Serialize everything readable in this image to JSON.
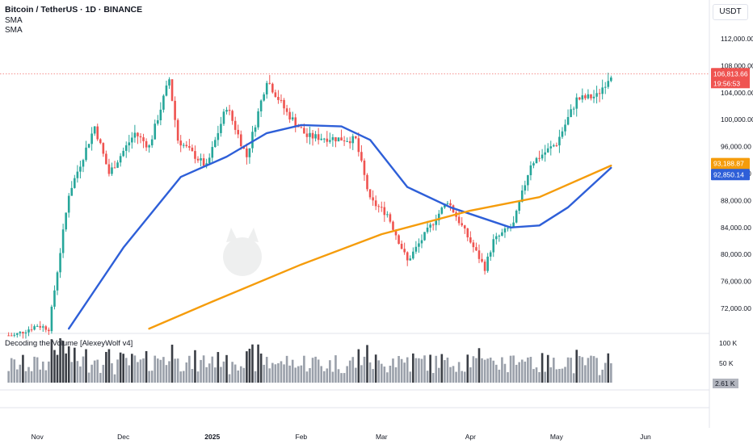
{
  "header": {
    "title": "Bitcoin / TetherUS · 1D · BINANCE",
    "indicators": [
      "SMA",
      "SMA"
    ],
    "currency": "USDT"
  },
  "colors": {
    "up": "#26a69a",
    "down": "#ef5350",
    "sma_short": "#2e5fd8",
    "sma_long": "#f59c0b",
    "price_line": "#ef5350",
    "volume": "#9aa0aa",
    "volume_dark": "#3a3e45"
  },
  "price_labels": {
    "last_price": "106,813.66",
    "countdown": "19:56:53",
    "sma_long_value": "93,188.87",
    "sma_short_value": "92,850.14"
  },
  "volume_pane": {
    "title": "Decoding the Volume [AlexeyWolf v4]",
    "ticks": [
      "100 K",
      "50 K"
    ],
    "current": "2.61 K"
  },
  "chart_data": {
    "type": "candlestick",
    "y_ticks": [
      "112,000.00",
      "108,000.00",
      "104,000.00",
      "100,000.00",
      "96,000.00",
      "92,000.00",
      "88,000.00",
      "84,000.00",
      "80,000.00",
      "76,000.00",
      "72,000.00"
    ],
    "ylim": [
      69000,
      113500
    ],
    "x_ticks": [
      "Nov",
      "Dec",
      "2025",
      "Feb",
      "Mar",
      "Apr",
      "May",
      "Jun"
    ],
    "candle_close_anchors": [
      [
        "2024-10-24",
        68000
      ],
      [
        "2024-11-01",
        69500
      ],
      [
        "2024-11-05",
        69000
      ],
      [
        "2024-11-12",
        89000
      ],
      [
        "2024-11-21",
        99000
      ],
      [
        "2024-11-26",
        92000
      ],
      [
        "2024-12-05",
        98000
      ],
      [
        "2024-12-10",
        96000
      ],
      [
        "2024-12-17",
        106000
      ],
      [
        "2024-12-20",
        97000
      ],
      [
        "2024-12-30",
        93000
      ],
      [
        "2025-01-06",
        102000
      ],
      [
        "2025-01-13",
        94500
      ],
      [
        "2025-01-20",
        106000
      ],
      [
        "2025-01-27",
        101000
      ],
      [
        "2025-02-03",
        97500
      ],
      [
        "2025-02-20",
        97000
      ],
      [
        "2025-02-25",
        88000
      ],
      [
        "2025-03-03",
        86000
      ],
      [
        "2025-03-10",
        79000
      ],
      [
        "2025-03-24",
        88000
      ],
      [
        "2025-04-06",
        78000
      ],
      [
        "2025-04-09",
        82000
      ],
      [
        "2025-04-16",
        84500
      ],
      [
        "2025-04-22",
        93500
      ],
      [
        "2025-05-01",
        96500
      ],
      [
        "2025-05-08",
        103000
      ],
      [
        "2025-05-15",
        103500
      ],
      [
        "2025-05-20",
        106800
      ]
    ],
    "series": [
      {
        "name": "SMA",
        "points": [
          [
            "2024-11-12",
            69000
          ],
          [
            "2024-12-01",
            81000
          ],
          [
            "2024-12-21",
            91500
          ],
          [
            "2025-01-06",
            94500
          ],
          [
            "2025-01-20",
            98000
          ],
          [
            "2025-02-01",
            99200
          ],
          [
            "2025-02-15",
            99000
          ],
          [
            "2025-02-25",
            97000
          ],
          [
            "2025-03-10",
            90000
          ],
          [
            "2025-03-25",
            87000
          ],
          [
            "2025-04-15",
            84000
          ],
          [
            "2025-04-25",
            84300
          ],
          [
            "2025-05-05",
            87000
          ],
          [
            "2025-05-20",
            92850
          ]
        ]
      },
      {
        "name": "SMA",
        "points": [
          [
            "2024-12-10",
            69000
          ],
          [
            "2025-01-01",
            73000
          ],
          [
            "2025-02-01",
            78500
          ],
          [
            "2025-03-01",
            83000
          ],
          [
            "2025-04-01",
            86500
          ],
          [
            "2025-04-25",
            88500
          ],
          [
            "2025-05-20",
            93190
          ]
        ]
      }
    ]
  }
}
